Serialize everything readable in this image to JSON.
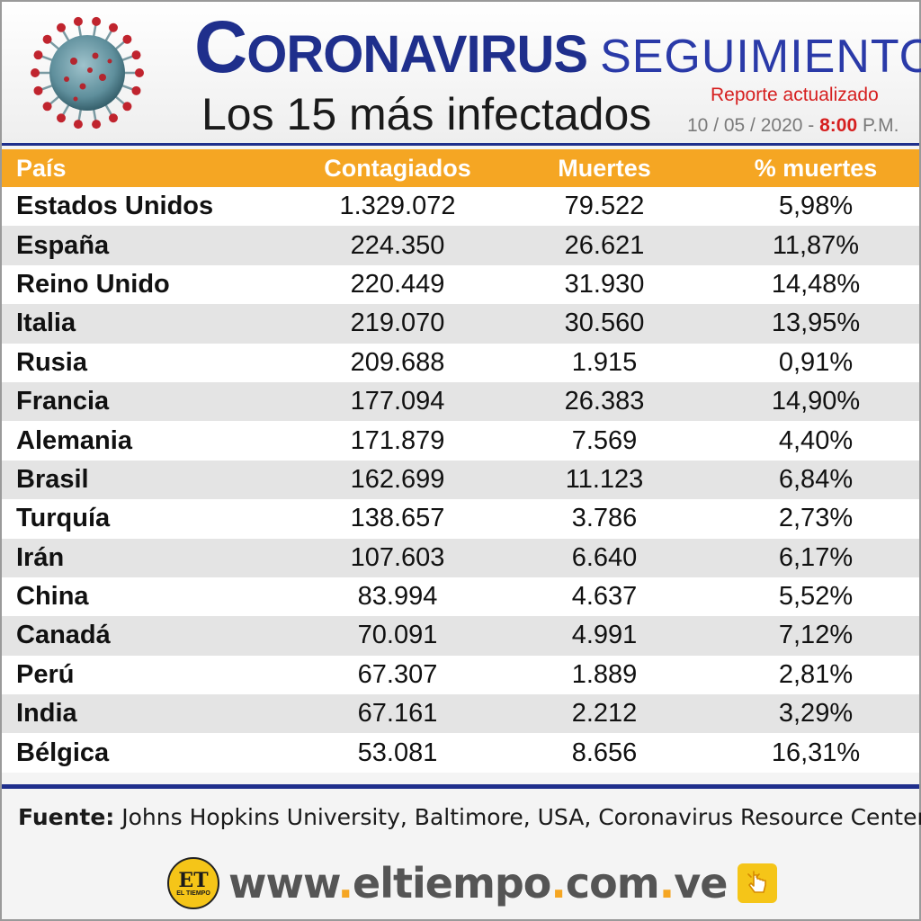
{
  "header": {
    "title_main_first": "C",
    "title_main_rest": "ORONAVIRUS",
    "title_sub": "SEGUIMIENTO",
    "subtitle": "Los 15 más infectados",
    "report_label": "Reporte actualizado",
    "report_date": "10 / 05 / 2020 -",
    "report_time": "8:00",
    "report_ampm": "P.M."
  },
  "table": {
    "columns": [
      "País",
      "Contagiados",
      "Muertes",
      "% muertes"
    ],
    "rows": [
      [
        "Estados Unidos",
        "1.329.072",
        "79.522",
        "5,98%"
      ],
      [
        "España",
        "224.350",
        "26.621",
        "11,87%"
      ],
      [
        "Reino Unido",
        "220.449",
        "31.930",
        "14,48%"
      ],
      [
        "Italia",
        "219.070",
        "30.560",
        "13,95%"
      ],
      [
        "Rusia",
        "209.688",
        "1.915",
        "0,91%"
      ],
      [
        "Francia",
        "177.094",
        "26.383",
        "14,90%"
      ],
      [
        "Alemania",
        "171.879",
        "7.569",
        "4,40%"
      ],
      [
        "Brasil",
        "162.699",
        "11.123",
        "6,84%"
      ],
      [
        "Turquía",
        "138.657",
        "3.786",
        "2,73%"
      ],
      [
        "Irán",
        "107.603",
        "6.640",
        "6,17%"
      ],
      [
        "China",
        "83.994",
        "4.637",
        "5,52%"
      ],
      [
        "Canadá",
        "70.091",
        "4.991",
        "7,12%"
      ],
      [
        "Perú",
        "67.307",
        "1.889",
        "2,81%"
      ],
      [
        "India",
        "67.161",
        "2.212",
        "3,29%"
      ],
      [
        "Bélgica",
        "53.081",
        "8.656",
        "16,31%"
      ]
    ]
  },
  "footer": {
    "source_label": "Fuente:",
    "source_text": "Johns Hopkins University, Baltimore, USA, Coronavirus Resource Center",
    "logo_text": "ET",
    "logo_small": "EL TIEMPO",
    "url_parts": [
      "www",
      ".",
      "eltiempo",
      ".",
      "com",
      ".",
      "ve"
    ]
  },
  "colors": {
    "navy": "#1f2f8c",
    "orange": "#f5a623",
    "red": "#d61f1f"
  }
}
